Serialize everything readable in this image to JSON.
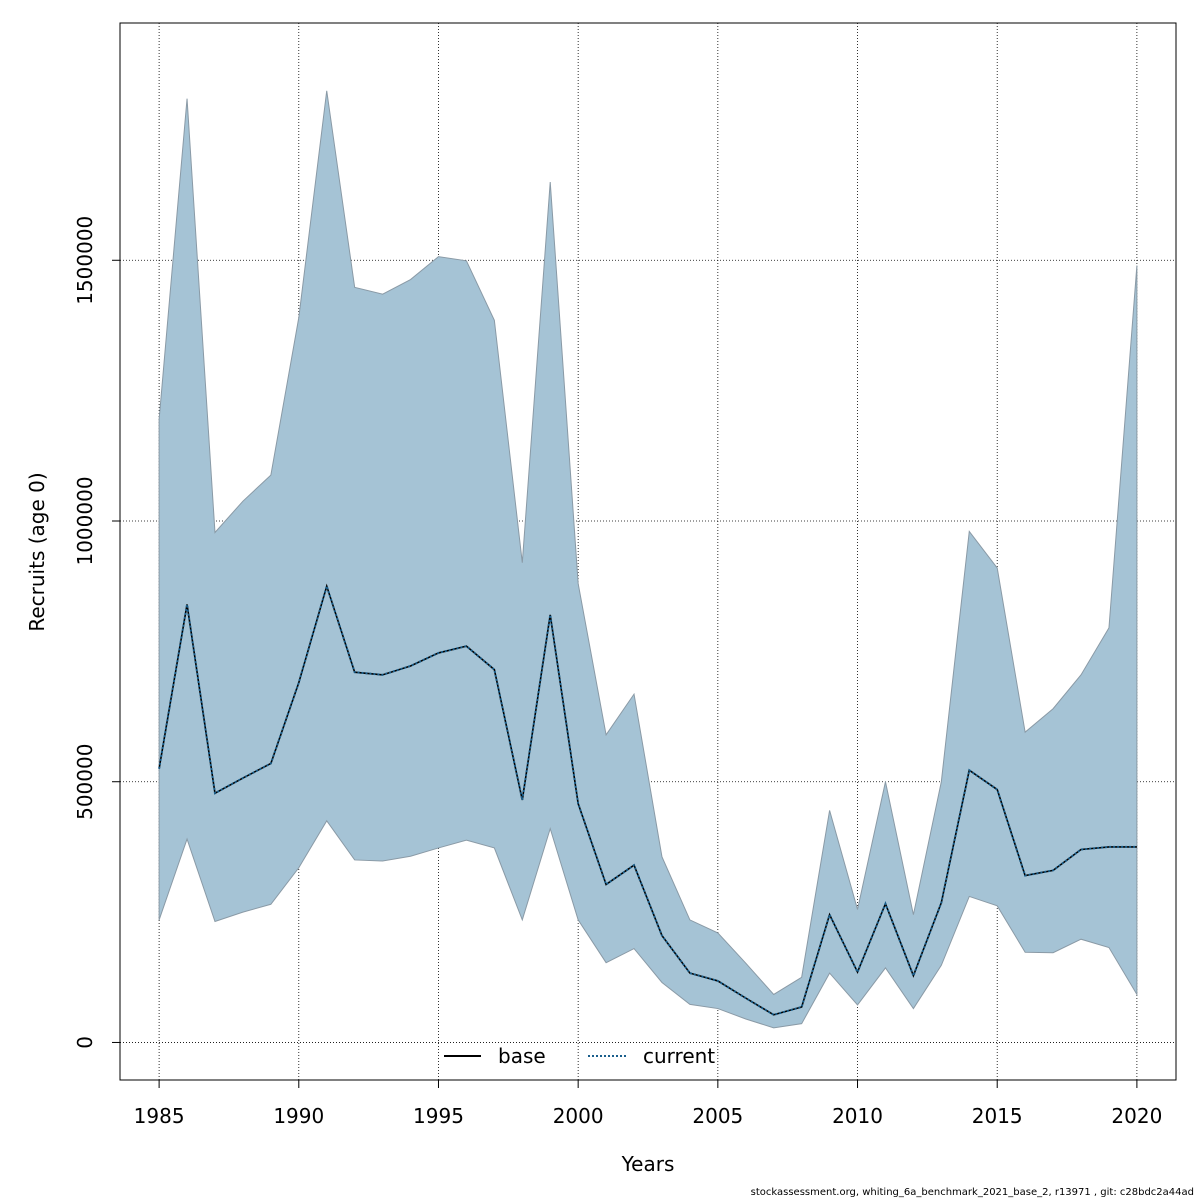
{
  "chart_data": {
    "type": "area",
    "xlabel": "Years",
    "ylabel": "Recruits (age 0)",
    "xlim": [
      1983.6,
      2021.4
    ],
    "ylim": [
      -72000,
      1955000
    ],
    "x_ticks": [
      1985,
      1990,
      1995,
      2000,
      2005,
      2010,
      2015,
      2020
    ],
    "y_ticks": [
      0,
      500000,
      1000000,
      1500000
    ],
    "grid": true,
    "legend": {
      "position": "bottom-center",
      "entries": [
        "base",
        "current"
      ]
    },
    "colors": {
      "band": "#a5c3d5",
      "band_edge": "#8a9aa6",
      "base": "#000000",
      "current": "#1a5f8c",
      "grid": "#000000"
    },
    "years": [
      1985,
      1986,
      1987,
      1988,
      1989,
      1990,
      1991,
      1992,
      1993,
      1994,
      1995,
      1996,
      1997,
      1998,
      1999,
      2000,
      2001,
      2002,
      2003,
      2004,
      2005,
      2006,
      2007,
      2008,
      2009,
      2010,
      2011,
      2012,
      2013,
      2014,
      2015,
      2016,
      2017,
      2018,
      2019,
      2020
    ],
    "series": [
      {
        "name": "base",
        "style": "solid",
        "values": [
          525000,
          840000,
          478000,
          507000,
          535000,
          690000,
          875000,
          710000,
          705000,
          722000,
          747000,
          760000,
          715000,
          465000,
          820000,
          458000,
          303000,
          340000,
          205000,
          133000,
          118000,
          85000,
          53000,
          68000,
          245000,
          135000,
          266000,
          128000,
          268000,
          522000,
          485000,
          320000,
          330000,
          370000,
          375000,
          375000
        ]
      },
      {
        "name": "current",
        "style": "dotted",
        "values": [
          525000,
          840000,
          478000,
          507000,
          535000,
          690000,
          875000,
          710000,
          705000,
          722000,
          747000,
          760000,
          715000,
          465000,
          820000,
          458000,
          303000,
          340000,
          205000,
          133000,
          118000,
          85000,
          53000,
          68000,
          245000,
          135000,
          266000,
          128000,
          268000,
          522000,
          485000,
          320000,
          330000,
          370000,
          375000,
          375000
        ]
      }
    ],
    "band": {
      "lower": [
        235000,
        390000,
        232000,
        250000,
        265000,
        335000,
        425000,
        350000,
        348000,
        357000,
        373000,
        388000,
        373000,
        235000,
        410000,
        235000,
        153000,
        180000,
        115000,
        73000,
        65000,
        45000,
        28000,
        36000,
        133000,
        72000,
        143000,
        65000,
        148000,
        280000,
        262000,
        173000,
        172000,
        198000,
        182000,
        92000
      ],
      "upper": [
        1195000,
        1810000,
        978000,
        1038000,
        1088000,
        1390000,
        1825000,
        1448000,
        1435000,
        1463000,
        1507000,
        1499000,
        1385000,
        920000,
        1650000,
        880000,
        590000,
        668000,
        356000,
        235000,
        210000,
        152000,
        92000,
        125000,
        445000,
        255000,
        500000,
        245000,
        500000,
        980000,
        910000,
        595000,
        640000,
        705000,
        795000,
        1490000
      ]
    }
  },
  "footnote": "stockassessment.org, whiting_6a_benchmark_2021_base_2, r13971 , git: c28bdc2a44ad"
}
